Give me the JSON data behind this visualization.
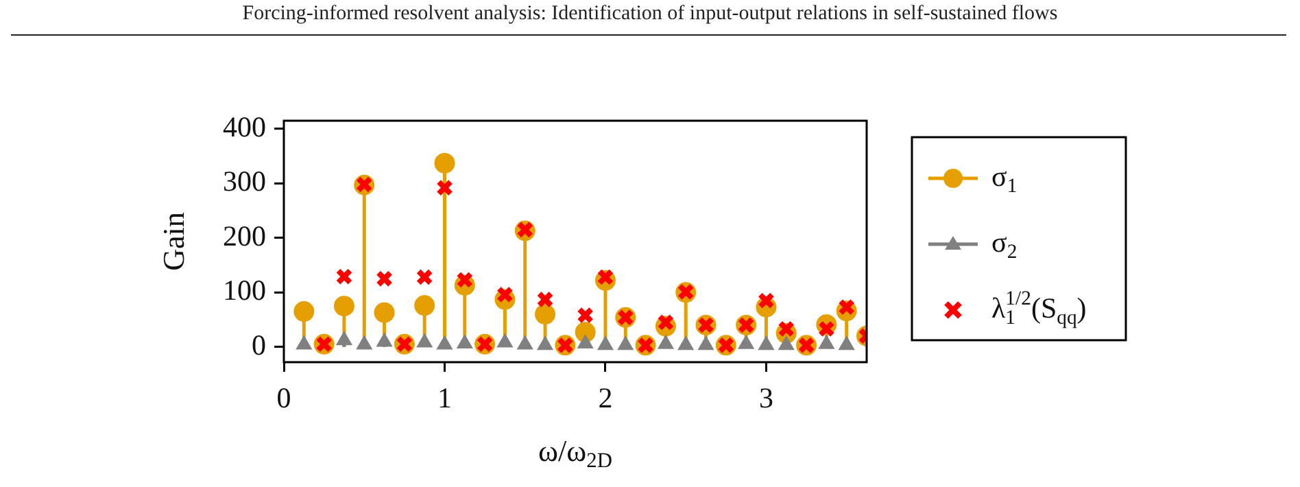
{
  "chart_data": {
    "type": "lollipop",
    "title": "Forcing-informed resolvent analysis: Identification of input-output relations in self-sustained flows",
    "xlabel": "ω/ω$_{2D}$",
    "ylabel": "Gain",
    "x": [
      0.125,
      0.25,
      0.375,
      0.5,
      0.625,
      0.75,
      0.875,
      1.0,
      1.125,
      1.25,
      1.375,
      1.5,
      1.625,
      1.75,
      1.875,
      2.0,
      2.125,
      2.25,
      2.375,
      2.5,
      2.625,
      2.75,
      2.875,
      3.0,
      3.125,
      3.25,
      3.375,
      3.5,
      3.625
    ],
    "series": [
      {
        "name": "σ$_{1}$",
        "color": "#e69f00",
        "marker": "circle",
        "values": [
          65,
          5,
          75,
          297,
          63,
          5,
          76,
          337,
          113,
          5,
          87,
          213,
          60,
          3,
          27,
          122,
          54,
          3,
          38,
          100,
          40,
          3,
          40,
          73,
          25,
          3,
          41,
          66,
          20
        ]
      },
      {
        "name": "σ$_{2}$",
        "color": "#808080",
        "marker": "triangle",
        "values": [
          4,
          null,
          12,
          4,
          9,
          null,
          8,
          4,
          6,
          null,
          8,
          4,
          3,
          null,
          6,
          3,
          3,
          null,
          5,
          3,
          3,
          null,
          5,
          3,
          3,
          null,
          5,
          3,
          null
        ]
      },
      {
        "name": "λ$_{1}$$^{1/2}$(S$_{qq}$)",
        "type": "scatter",
        "color": "#ff0000",
        "marker": "cross",
        "values": [
          null,
          5,
          129,
          298,
          125,
          5,
          128,
          292,
          123,
          5,
          96,
          215,
          87,
          3,
          58,
          128,
          54,
          3,
          45,
          101,
          40,
          3,
          40,
          85,
          33,
          3,
          33,
          73,
          20
        ]
      }
    ],
    "xlim": [
      0,
      3.625
    ],
    "xticks": [
      0,
      1,
      2,
      3
    ],
    "ylim": [
      -28,
      415
    ],
    "yticks": [
      0,
      100,
      200,
      300,
      400
    ],
    "grid": false,
    "legend": "right"
  }
}
